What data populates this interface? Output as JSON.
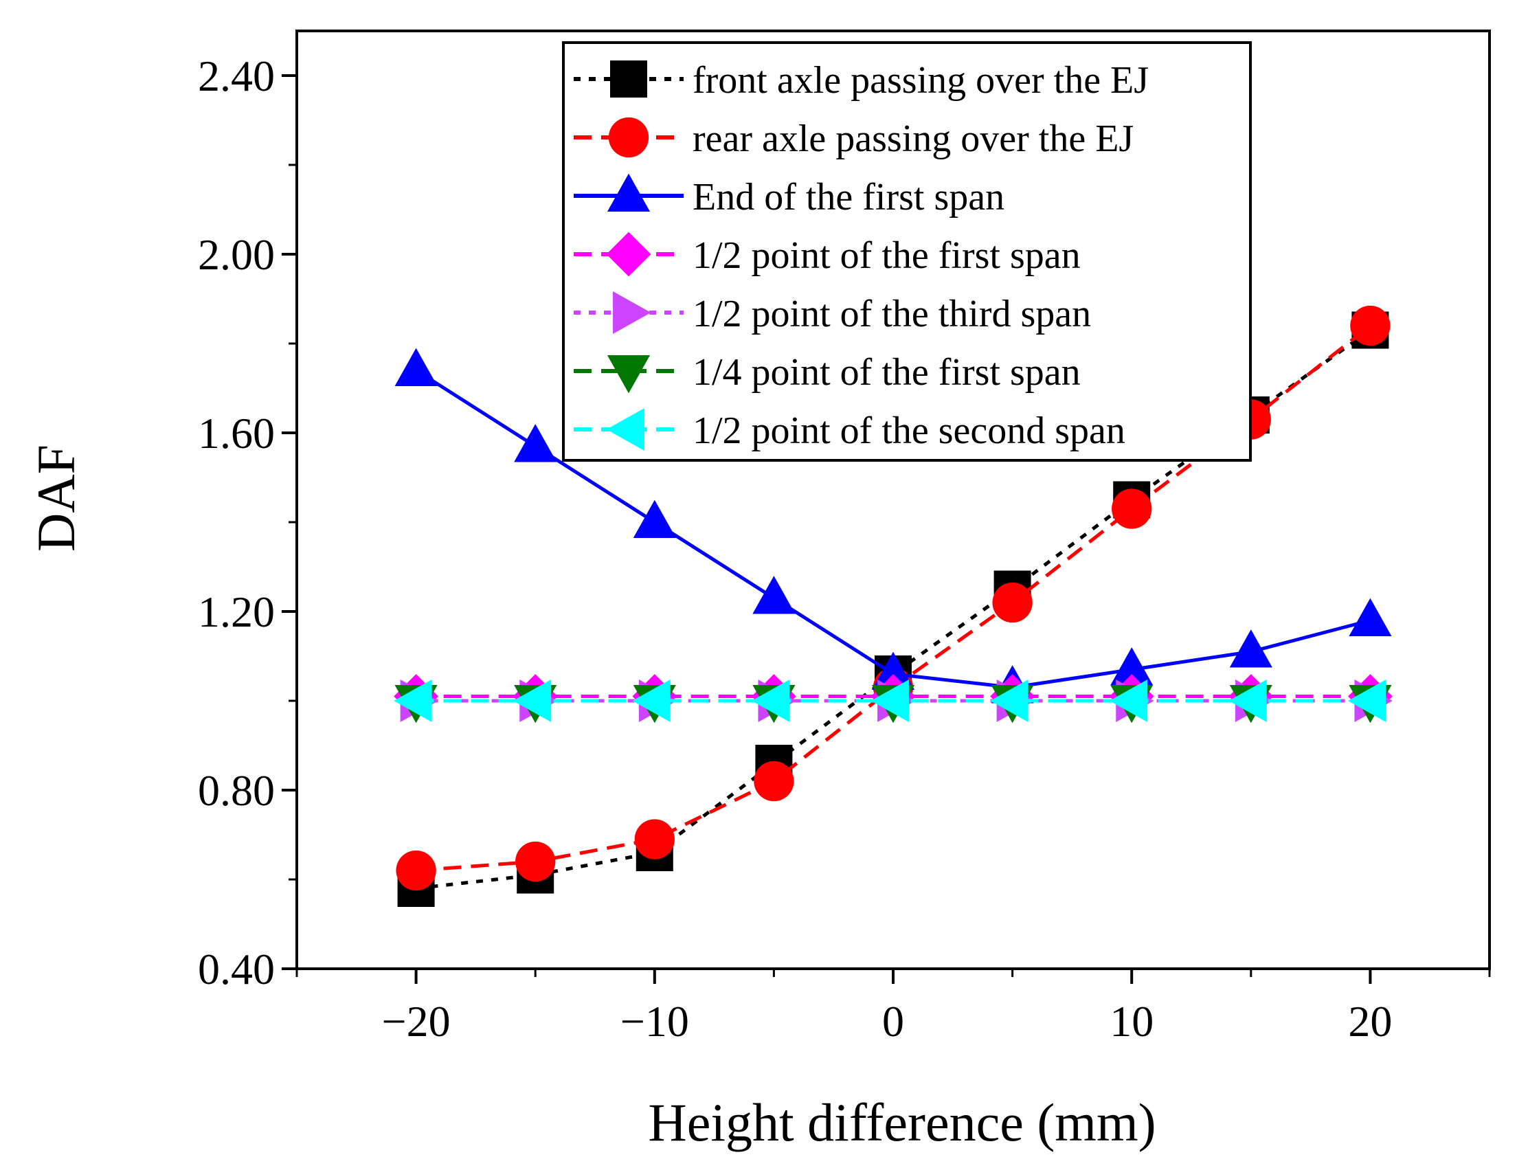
{
  "chart_data": {
    "type": "line",
    "title": "",
    "xlabel": "Height difference (mm)",
    "ylabel": "DAF",
    "xlim": [
      -25,
      25
    ],
    "ylim": [
      0.4,
      2.5
    ],
    "xticks": [
      -20,
      -10,
      0,
      10,
      20
    ],
    "xtick_labels": [
      "−20",
      "−10",
      "0",
      "10",
      "20"
    ],
    "yticks": [
      0.4,
      0.8,
      1.2,
      1.6,
      2.0,
      2.4
    ],
    "ytick_labels": [
      "0.40",
      "0.80",
      "1.20",
      "1.60",
      "2.00",
      "2.40"
    ],
    "grid": false,
    "legend_position": "top-center",
    "x": [
      -20,
      -15,
      -10,
      -5,
      0,
      5,
      10,
      15,
      20
    ],
    "series": [
      {
        "name": "front axle passing over the EJ",
        "color": "#000000",
        "marker": "square",
        "dash": "dot",
        "values": [
          0.58,
          0.61,
          0.66,
          0.86,
          1.06,
          1.25,
          1.45,
          1.64,
          1.83
        ]
      },
      {
        "name": "rear axle passing over the EJ",
        "color": "#ff0000",
        "marker": "circle",
        "dash": "dash",
        "values": [
          0.62,
          0.64,
          0.69,
          0.82,
          1.03,
          1.22,
          1.43,
          1.63,
          1.84
        ]
      },
      {
        "name": "End of the first span",
        "color": "#0000ff",
        "marker": "triangle-up",
        "dash": "solid",
        "values": [
          1.74,
          1.57,
          1.4,
          1.23,
          1.06,
          1.03,
          1.07,
          1.11,
          1.18
        ]
      },
      {
        "name": "1/2 point of the first span",
        "color": "#ff00ff",
        "marker": "diamond",
        "dash": "dash",
        "values": [
          1.01,
          1.01,
          1.01,
          1.01,
          1.01,
          1.01,
          1.01,
          1.01,
          1.01
        ]
      },
      {
        "name": "1/2 point of the third span",
        "color": "#cc44ff",
        "marker": "triangle-right",
        "dash": "dot",
        "values": [
          1.0,
          1.0,
          1.0,
          1.0,
          1.0,
          1.0,
          1.0,
          1.0,
          1.0
        ]
      },
      {
        "name": "1/4 point of the first span",
        "color": "#007700",
        "marker": "triangle-down",
        "dash": "dash",
        "values": [
          1.0,
          1.0,
          1.0,
          1.0,
          1.0,
          1.0,
          1.0,
          1.0,
          1.0
        ]
      },
      {
        "name": "1/2 point of the second span",
        "color": "#00ffff",
        "marker": "triangle-left",
        "dash": "dash",
        "values": [
          1.0,
          1.0,
          1.0,
          1.0,
          1.0,
          1.0,
          1.0,
          1.0,
          1.0
        ]
      }
    ]
  }
}
